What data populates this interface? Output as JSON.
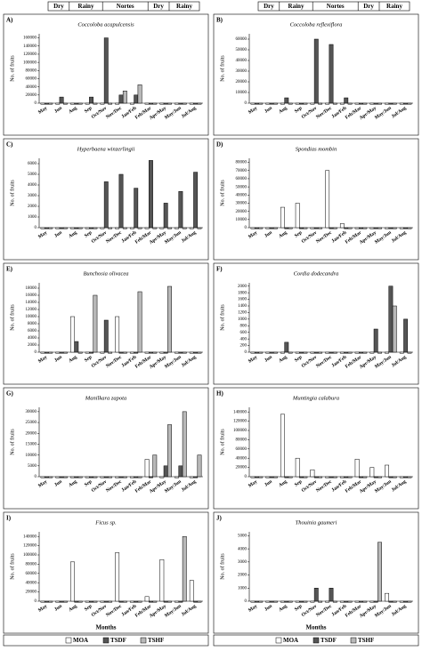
{
  "season_header": [
    "Dry",
    "Rainy",
    "Nortes",
    "Dry",
    "Rainy"
  ],
  "chart_data": [
    {
      "type": "bar",
      "label": "A)",
      "title": "Coccoloba acapulcensis",
      "ylabel": "No. of fruits",
      "categories": [
        "May",
        "Jun",
        "Aug",
        "Sep",
        "Oct/Nov",
        "Nov/Dec",
        "Jan/Feb",
        "Feb/Mar",
        "Apr/May",
        "May/Jun",
        "Jul/Aug"
      ],
      "series": [
        {
          "name": "MOA",
          "color": "#ffffff",
          "values": [
            0,
            0,
            0,
            0,
            0,
            0,
            0,
            0,
            0,
            0,
            0
          ]
        },
        {
          "name": "TSDF",
          "color": "#555555",
          "values": [
            0,
            15000,
            0,
            15000,
            160000,
            20000,
            20000,
            0,
            0,
            0,
            0
          ]
        },
        {
          "name": "TSHF",
          "color": "#b8b8b8",
          "values": [
            0,
            0,
            0,
            0,
            0,
            30000,
            45000,
            0,
            0,
            0,
            0
          ]
        }
      ],
      "ylim": [
        0,
        170000
      ],
      "yticks": [
        0,
        20000,
        40000,
        60000,
        80000,
        100000,
        120000,
        140000,
        160000
      ]
    },
    {
      "type": "bar",
      "label": "B)",
      "title": "Coccoloba reflexiflora",
      "ylabel": "No. of fruits",
      "categories": [
        "May",
        "Jun",
        "Aug",
        "Sep",
        "Oct/Nov",
        "Nov/Dec",
        "Jan/Feb",
        "Feb/Mar",
        "Apr/May",
        "May/Jun",
        "Jul/Aug"
      ],
      "series": [
        {
          "name": "MOA",
          "color": "#ffffff",
          "values": [
            0,
            0,
            0,
            0,
            0,
            0,
            0,
            0,
            0,
            0,
            0
          ]
        },
        {
          "name": "TSDF",
          "color": "#555555",
          "values": [
            0,
            0,
            5000,
            0,
            60000,
            55000,
            5000,
            0,
            0,
            0,
            0
          ]
        },
        {
          "name": "TSHF",
          "color": "#b8b8b8",
          "values": [
            0,
            0,
            0,
            0,
            0,
            0,
            0,
            0,
            0,
            0,
            0
          ]
        }
      ],
      "ylim": [
        0,
        65000
      ],
      "yticks": [
        0,
        10000,
        20000,
        30000,
        40000,
        50000,
        60000
      ]
    },
    {
      "type": "bar",
      "label": "C)",
      "title": "Hyperbaena winzerlingii",
      "ylabel": "No. of fruits",
      "categories": [
        "May",
        "Jun",
        "Aug",
        "Sep",
        "Oct/Nov",
        "Nov/Dec",
        "Jan/Feb",
        "Feb/Mar",
        "Apr/May",
        "May/Jun",
        "Jul/Aug"
      ],
      "series": [
        {
          "name": "MOA",
          "color": "#ffffff",
          "values": [
            0,
            0,
            0,
            0,
            0,
            0,
            0,
            0,
            0,
            0,
            0
          ]
        },
        {
          "name": "TSDF",
          "color": "#555555",
          "values": [
            0,
            0,
            0,
            0,
            4300,
            5000,
            3700,
            6300,
            2300,
            3400,
            5200
          ]
        },
        {
          "name": "TSHF",
          "color": "#b8b8b8",
          "values": [
            0,
            0,
            0,
            0,
            0,
            0,
            0,
            0,
            0,
            0,
            0
          ]
        }
      ],
      "ylim": [
        0,
        6500
      ],
      "yticks": [
        0,
        1000,
        2000,
        3000,
        4000,
        5000,
        6000
      ]
    },
    {
      "type": "bar",
      "label": "D)",
      "title": "Spondias mombin",
      "ylabel": "No. of fruits",
      "categories": [
        "May",
        "Jun",
        "Aug",
        "Sep",
        "Oct/Nov",
        "Nov/Dec",
        "Jan/Feb",
        "Feb/Mar",
        "Apr/May",
        "May/Jun",
        "Jul/Aug"
      ],
      "series": [
        {
          "name": "MOA",
          "color": "#ffffff",
          "values": [
            0,
            0,
            25000,
            30000,
            0,
            70000,
            5000,
            0,
            0,
            0,
            0
          ]
        },
        {
          "name": "TSDF",
          "color": "#555555",
          "values": [
            0,
            0,
            0,
            0,
            0,
            0,
            0,
            0,
            0,
            0,
            0
          ]
        },
        {
          "name": "TSHF",
          "color": "#b8b8b8",
          "values": [
            0,
            0,
            0,
            0,
            0,
            0,
            0,
            0,
            0,
            0,
            0
          ]
        }
      ],
      "ylim": [
        0,
        85000
      ],
      "yticks": [
        0,
        10000,
        20000,
        30000,
        40000,
        50000,
        60000,
        70000,
        80000
      ]
    },
    {
      "type": "bar",
      "label": "E)",
      "title": "Bunchosia olivacea",
      "ylabel": "No. of fruits",
      "categories": [
        "May",
        "Jun",
        "Aug",
        "Sep",
        "Oct/Nov",
        "Nov/Dec",
        "Jan/Feb",
        "Feb/Mar",
        "Apr/May",
        "May/Jun",
        "Jul/Aug"
      ],
      "series": [
        {
          "name": "MOA",
          "color": "#ffffff",
          "values": [
            0,
            0,
            10000,
            0,
            0,
            10000,
            0,
            0,
            0,
            0,
            0
          ]
        },
        {
          "name": "TSDF",
          "color": "#555555",
          "values": [
            0,
            0,
            3000,
            0,
            9000,
            0,
            0,
            0,
            0,
            0,
            0
          ]
        },
        {
          "name": "TSHF",
          "color": "#b8b8b8",
          "values": [
            0,
            0,
            0,
            16000,
            0,
            0,
            17000,
            0,
            18500,
            0,
            0
          ]
        }
      ],
      "ylim": [
        0,
        19500
      ],
      "yticks": [
        0,
        2000,
        4000,
        6000,
        8000,
        10000,
        12000,
        14000,
        16000,
        18000
      ]
    },
    {
      "type": "bar",
      "label": "F)",
      "title": "Cordia dodecandra",
      "ylabel": "No. of fruits",
      "categories": [
        "May",
        "Jun",
        "Aug",
        "Sep",
        "Oct/Nov",
        "Nov/Dec",
        "Jan/Feb",
        "Feb/Mar",
        "Apr/May",
        "May/Jun",
        "Jul/Aug"
      ],
      "series": [
        {
          "name": "MOA",
          "color": "#ffffff",
          "values": [
            0,
            0,
            0,
            0,
            0,
            0,
            0,
            0,
            0,
            0,
            0
          ]
        },
        {
          "name": "TSDF",
          "color": "#555555",
          "values": [
            0,
            0,
            300,
            0,
            0,
            0,
            0,
            0,
            700,
            2000,
            1000
          ]
        },
        {
          "name": "TSHF",
          "color": "#b8b8b8",
          "values": [
            0,
            0,
            0,
            0,
            0,
            0,
            0,
            0,
            0,
            1400,
            0
          ]
        }
      ],
      "ylim": [
        0,
        2100
      ],
      "yticks": [
        0,
        200,
        400,
        600,
        800,
        1000,
        1200,
        1400,
        1600,
        1800,
        2000
      ]
    },
    {
      "type": "bar",
      "label": "G)",
      "title": "Manilkara zapota",
      "ylabel": "No. of fruits",
      "categories": [
        "May",
        "Jun",
        "Aug",
        "Sep",
        "Oct/Nov",
        "Nov/Dec",
        "Jan/Feb",
        "Feb/Mar",
        "Apr/May",
        "May/Jun",
        "Jul/Aug"
      ],
      "series": [
        {
          "name": "MOA",
          "color": "#ffffff",
          "values": [
            0,
            0,
            0,
            0,
            0,
            0,
            0,
            8000,
            0,
            0,
            0
          ]
        },
        {
          "name": "TSDF",
          "color": "#555555",
          "values": [
            0,
            0,
            0,
            0,
            0,
            0,
            0,
            0,
            5000,
            5000,
            0
          ]
        },
        {
          "name": "TSHF",
          "color": "#b8b8b8",
          "values": [
            0,
            0,
            0,
            0,
            0,
            0,
            0,
            10000,
            24000,
            30000,
            10000
          ]
        }
      ],
      "ylim": [
        0,
        32000
      ],
      "yticks": [
        0,
        5000,
        10000,
        15000,
        20000,
        25000,
        30000
      ]
    },
    {
      "type": "bar",
      "label": "H)",
      "title": "Muntingia calabura",
      "ylabel": "No. of fruits",
      "categories": [
        "May",
        "Jun",
        "Aug",
        "Sep",
        "Oct/Nov",
        "Nov/Dec",
        "Jan/Feb",
        "Feb/Mar",
        "Apr/May",
        "May/Jun",
        "Jul/Aug"
      ],
      "series": [
        {
          "name": "MOA",
          "color": "#ffffff",
          "values": [
            0,
            0,
            135000,
            40000,
            15000,
            0,
            0,
            38000,
            20000,
            25000,
            0
          ]
        },
        {
          "name": "TSDF",
          "color": "#555555",
          "values": [
            0,
            0,
            0,
            0,
            0,
            0,
            0,
            0,
            0,
            0,
            0
          ]
        },
        {
          "name": "TSHF",
          "color": "#b8b8b8",
          "values": [
            0,
            0,
            0,
            0,
            0,
            0,
            0,
            0,
            0,
            0,
            0
          ]
        }
      ],
      "ylim": [
        0,
        150000
      ],
      "yticks": [
        0,
        20000,
        40000,
        60000,
        80000,
        100000,
        120000,
        140000
      ]
    },
    {
      "type": "bar",
      "label": "I)",
      "title": "Ficus sp.",
      "ylabel": "No. of fruits",
      "xlabel": "Months",
      "categories": [
        "May",
        "Jun",
        "Aug",
        "Sep",
        "Oct/Nov",
        "Nov/Dec",
        "Jan/Feb",
        "Feb/Mar",
        "Apr/May",
        "May/Jun",
        "Jul/Aug"
      ],
      "series": [
        {
          "name": "MOA",
          "color": "#ffffff",
          "values": [
            0,
            0,
            85000,
            0,
            0,
            105000,
            0,
            10000,
            90000,
            0,
            45000
          ]
        },
        {
          "name": "TSDF",
          "color": "#555555",
          "values": [
            0,
            0,
            0,
            0,
            0,
            0,
            0,
            0,
            0,
            0,
            0
          ]
        },
        {
          "name": "TSHF",
          "color": "#b8b8b8",
          "values": [
            0,
            0,
            0,
            0,
            0,
            0,
            0,
            0,
            0,
            140000,
            0
          ]
        }
      ],
      "ylim": [
        0,
        150000
      ],
      "yticks": [
        0,
        20000,
        40000,
        60000,
        80000,
        100000,
        120000,
        140000
      ]
    },
    {
      "type": "bar",
      "label": "J)",
      "title": "Thouinia gaumeri",
      "ylabel": "No. of fruits",
      "xlabel": "Months",
      "categories": [
        "May",
        "Jun",
        "Aug",
        "Sep",
        "Oct/Nov",
        "Nov/Dec",
        "Jan/Feb",
        "Feb/Mar",
        "Apr/May",
        "May/Jun",
        "Jul/Aug"
      ],
      "series": [
        {
          "name": "MOA",
          "color": "#ffffff",
          "values": [
            0,
            0,
            0,
            0,
            0,
            0,
            0,
            0,
            0,
            600,
            0
          ]
        },
        {
          "name": "TSDF",
          "color": "#555555",
          "values": [
            0,
            0,
            0,
            0,
            1000,
            1000,
            0,
            0,
            0,
            0,
            0
          ]
        },
        {
          "name": "TSHF",
          "color": "#b8b8b8",
          "values": [
            0,
            0,
            0,
            0,
            0,
            0,
            0,
            0,
            4500,
            0,
            0
          ]
        }
      ],
      "ylim": [
        0,
        5300
      ],
      "yticks": [
        0,
        1000,
        2000,
        3000,
        4000,
        5000
      ]
    }
  ]
}
